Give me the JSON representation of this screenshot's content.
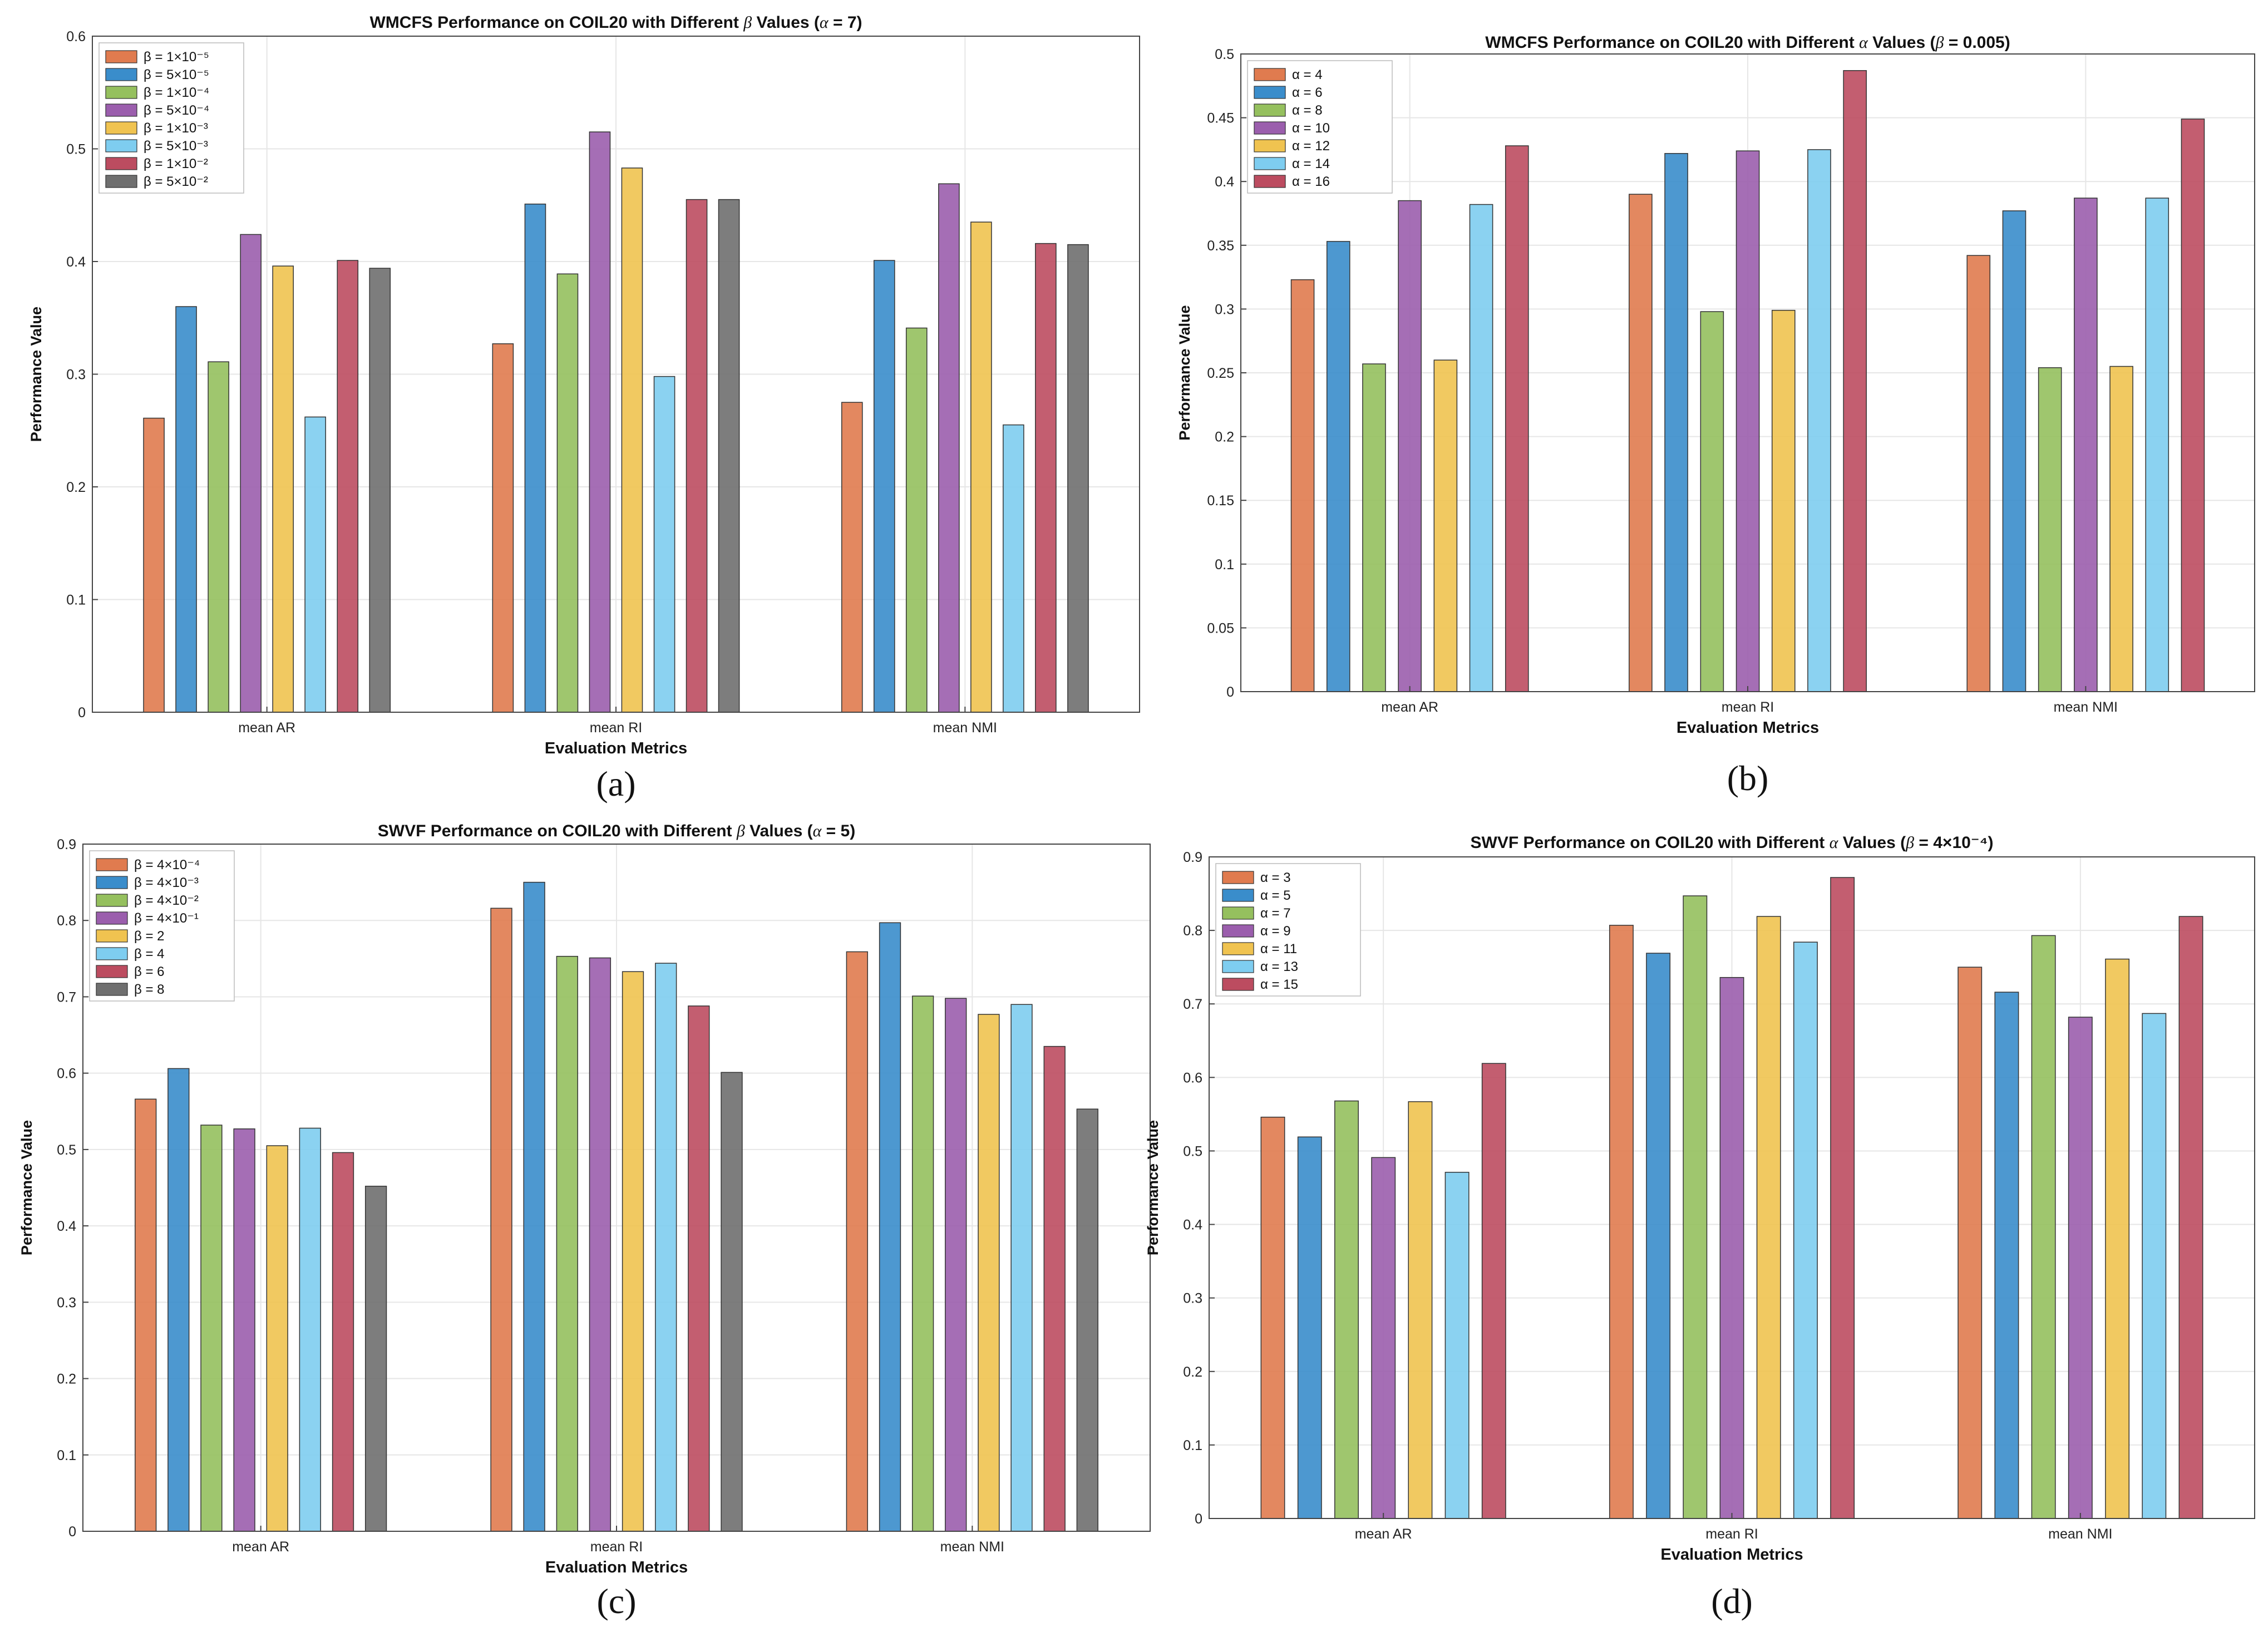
{
  "palette": [
    "#E07B4F",
    "#3A8DCB",
    "#95C05E",
    "#9B5EAD",
    "#F0C350",
    "#7ECDF0",
    "#BC4C60",
    "#6F6F6F"
  ],
  "colors": {
    "grid": "#E6E6E6",
    "axis": "#444444",
    "bar_edge": "#333333"
  },
  "chart_data": [
    {
      "type": "bar",
      "panel_label": "(a)",
      "title_parts": [
        "WMCFS Performance on COIL20 with Different ",
        "β",
        " Values (",
        "α",
        " = 7)"
      ],
      "xlabel": "Evaluation Metrics",
      "ylabel": "Performance Value",
      "categories": [
        "mean AR",
        "mean RI",
        "mean NMI"
      ],
      "ylim": [
        0,
        0.6
      ],
      "yticks": [
        "0",
        "0.1",
        "0.2",
        "0.3",
        "0.4",
        "0.5",
        "0.6"
      ],
      "grid": true,
      "legend_position": "top-left",
      "series": [
        {
          "name": "β = 1×10⁻⁵",
          "values": [
            0.261,
            0.327,
            0.275
          ]
        },
        {
          "name": "β = 5×10⁻⁵",
          "values": [
            0.36,
            0.451,
            0.401
          ]
        },
        {
          "name": "β = 1×10⁻⁴",
          "values": [
            0.311,
            0.389,
            0.341
          ]
        },
        {
          "name": "β = 5×10⁻⁴",
          "values": [
            0.424,
            0.515,
            0.469
          ]
        },
        {
          "name": "β = 1×10⁻³",
          "values": [
            0.396,
            0.483,
            0.435
          ]
        },
        {
          "name": "β = 5×10⁻³",
          "values": [
            0.262,
            0.298,
            0.255
          ]
        },
        {
          "name": "β = 1×10⁻²",
          "values": [
            0.401,
            0.455,
            0.416
          ]
        },
        {
          "name": "β = 5×10⁻²",
          "values": [
            0.394,
            0.455,
            0.415
          ]
        }
      ]
    },
    {
      "type": "bar",
      "panel_label": "(b)",
      "title_parts": [
        "WMCFS Performance on COIL20 with Different ",
        "α",
        " Values (",
        "β",
        " = 0.005)"
      ],
      "xlabel": "Evaluation Metrics",
      "ylabel": "Performance Value",
      "categories": [
        "mean AR",
        "mean RI",
        "mean NMI"
      ],
      "ylim": [
        0,
        0.5
      ],
      "yticks": [
        "0",
        "0.05",
        "0.1",
        "0.15",
        "0.2",
        "0.25",
        "0.3",
        "0.35",
        "0.4",
        "0.45",
        "0.5"
      ],
      "grid": true,
      "legend_position": "top-left",
      "series": [
        {
          "name": "α = 4",
          "values": [
            0.323,
            0.39,
            0.342
          ]
        },
        {
          "name": "α = 6",
          "values": [
            0.353,
            0.422,
            0.377
          ]
        },
        {
          "name": "α = 8",
          "values": [
            0.257,
            0.298,
            0.254
          ]
        },
        {
          "name": "α = 10",
          "values": [
            0.385,
            0.424,
            0.387
          ]
        },
        {
          "name": "α = 12",
          "values": [
            0.26,
            0.299,
            0.255
          ]
        },
        {
          "name": "α = 14",
          "values": [
            0.382,
            0.425,
            0.387
          ]
        },
        {
          "name": "α = 16",
          "values": [
            0.428,
            0.487,
            0.449
          ]
        }
      ]
    },
    {
      "type": "bar",
      "panel_label": "(c)",
      "title_parts": [
        "SWVF Performance on COIL20 with Different ",
        "β",
        " Values (",
        "α",
        " = 5)"
      ],
      "xlabel": "Evaluation Metrics",
      "ylabel": "Performance Value",
      "categories": [
        "mean AR",
        "mean RI",
        "mean NMI"
      ],
      "ylim": [
        0,
        0.9
      ],
      "yticks": [
        "0",
        "0.1",
        "0.2",
        "0.3",
        "0.4",
        "0.5",
        "0.6",
        "0.7",
        "0.8",
        "0.9"
      ],
      "grid": true,
      "legend_position": "top-left",
      "series": [
        {
          "name": "β = 4×10⁻⁴",
          "values": [
            0.566,
            0.816,
            0.759
          ]
        },
        {
          "name": "β = 4×10⁻³",
          "values": [
            0.606,
            0.85,
            0.797
          ]
        },
        {
          "name": "β = 4×10⁻²",
          "values": [
            0.532,
            0.753,
            0.701
          ]
        },
        {
          "name": "β = 4×10⁻¹",
          "values": [
            0.527,
            0.751,
            0.698
          ]
        },
        {
          "name": "β = 2",
          "values": [
            0.505,
            0.733,
            0.677
          ]
        },
        {
          "name": "β = 4",
          "values": [
            0.528,
            0.744,
            0.69
          ]
        },
        {
          "name": "β = 6",
          "values": [
            0.496,
            0.688,
            0.635
          ]
        },
        {
          "name": "β = 8",
          "values": [
            0.452,
            0.601,
            0.553
          ]
        }
      ]
    },
    {
      "type": "bar",
      "panel_label": "(d)",
      "title_parts": [
        "SWVF Performance on COIL20 with Different ",
        "α",
        " Values (",
        "β",
        " = 4×10⁻⁴)"
      ],
      "xlabel": "Evaluation Metrics",
      "ylabel": "Performance Value",
      "categories": [
        "mean AR",
        "mean RI",
        "mean NMI"
      ],
      "ylim": [
        0,
        0.9
      ],
      "yticks": [
        "0",
        "0.1",
        "0.2",
        "0.3",
        "0.4",
        "0.5",
        "0.6",
        "0.7",
        "0.8",
        "0.9"
      ],
      "grid": true,
      "legend_position": "top-left",
      "series": [
        {
          "name": "α = 3",
          "values": [
            0.546,
            0.807,
            0.75
          ]
        },
        {
          "name": "α = 5",
          "values": [
            0.519,
            0.769,
            0.716
          ]
        },
        {
          "name": "α = 7",
          "values": [
            0.568,
            0.847,
            0.793
          ]
        },
        {
          "name": "α = 9",
          "values": [
            0.491,
            0.736,
            0.682
          ]
        },
        {
          "name": "α = 11",
          "values": [
            0.567,
            0.819,
            0.761
          ]
        },
        {
          "name": "α = 13",
          "values": [
            0.471,
            0.784,
            0.687
          ]
        },
        {
          "name": "α = 15",
          "values": [
            0.619,
            0.872,
            0.819
          ]
        }
      ]
    }
  ]
}
